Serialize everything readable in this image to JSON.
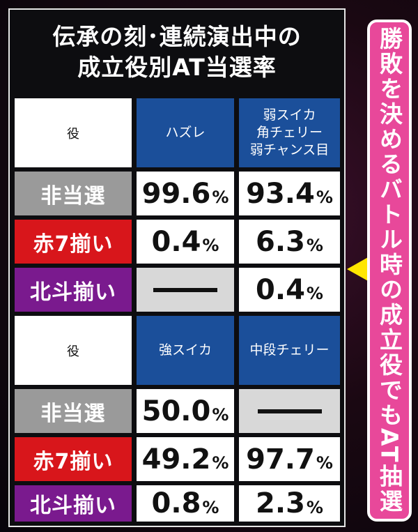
{
  "title_line1": "伝承の刻･連続演出中の",
  "title_line2": "成立役別AT当選率",
  "table1": {
    "header_label": "役",
    "col1": "ハズレ",
    "col2_lines": [
      "弱スイカ",
      "角チェリー",
      "弱チャンス目"
    ],
    "rows": [
      {
        "label": "非当選",
        "v1": "99.6",
        "v2": "93.4"
      },
      {
        "label": "赤7揃い",
        "v1": "0.4",
        "v2": "6.3"
      },
      {
        "label": "北斗揃い",
        "v1": "",
        "v2": "0.4"
      }
    ]
  },
  "table2": {
    "header_label": "役",
    "col1": "強スイカ",
    "col2": "中段チェリー",
    "rows": [
      {
        "label": "非当選",
        "v1": "50.0",
        "v2": ""
      },
      {
        "label": "赤7揃い",
        "v1": "49.2",
        "v2": "97.7"
      },
      {
        "label": "北斗揃い",
        "v1": "0.8",
        "v2": "2.3"
      }
    ]
  },
  "percent_sign": "%",
  "side_note": "勝敗を決めるバトル時の成立役でもAT抽選",
  "colors": {
    "header_blue": "#1b4f9a",
    "label_gray": "#9a9a9a",
    "label_red": "#d8161b",
    "label_purple": "#7a1a8e",
    "side_pink": "#e8489a",
    "pointer_yellow": "#ffe600"
  }
}
